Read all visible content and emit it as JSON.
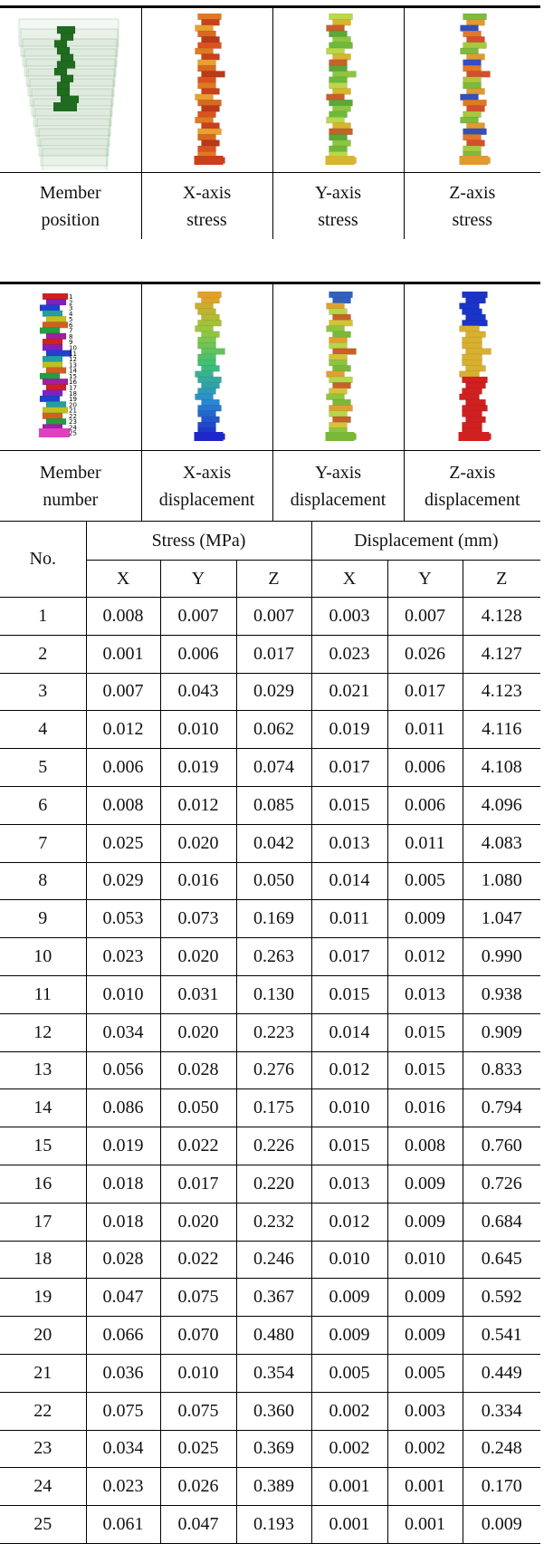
{
  "figure_rows": [
    {
      "labels": [
        [
          "Member",
          "position"
        ],
        [
          "X-axis",
          "stress"
        ],
        [
          "Y-axis",
          "stress"
        ],
        [
          "Z-axis",
          "stress"
        ]
      ]
    },
    {
      "labels": [
        [
          "Member",
          "number"
        ],
        [
          "X-axis",
          "displacement"
        ],
        [
          "Y-axis",
          "displacement"
        ],
        [
          "Z-axis",
          "displacement"
        ]
      ],
      "member_numbers": [
        1,
        2,
        3,
        4,
        5,
        6,
        7,
        8,
        9,
        10,
        11,
        12,
        13,
        14,
        15,
        16,
        17,
        18,
        19,
        20,
        21,
        22,
        23,
        24,
        25
      ]
    }
  ],
  "table": {
    "header": {
      "no": "No.",
      "stress": "Stress (MPa)",
      "displacement": "Displacement (mm)",
      "axes": [
        "X",
        "Y",
        "Z",
        "X",
        "Y",
        "Z"
      ]
    },
    "rows": [
      [
        1,
        "0.008",
        "0.007",
        "0.007",
        "0.003",
        "0.007",
        "4.128"
      ],
      [
        2,
        "0.001",
        "0.006",
        "0.017",
        "0.023",
        "0.026",
        "4.127"
      ],
      [
        3,
        "0.007",
        "0.043",
        "0.029",
        "0.021",
        "0.017",
        "4.123"
      ],
      [
        4,
        "0.012",
        "0.010",
        "0.062",
        "0.019",
        "0.011",
        "4.116"
      ],
      [
        5,
        "0.006",
        "0.019",
        "0.074",
        "0.017",
        "0.006",
        "4.108"
      ],
      [
        6,
        "0.008",
        "0.012",
        "0.085",
        "0.015",
        "0.006",
        "4.096"
      ],
      [
        7,
        "0.025",
        "0.020",
        "0.042",
        "0.013",
        "0.011",
        "4.083"
      ],
      [
        8,
        "0.029",
        "0.016",
        "0.050",
        "0.014",
        "0.005",
        "1.080"
      ],
      [
        9,
        "0.053",
        "0.073",
        "0.169",
        "0.011",
        "0.009",
        "1.047"
      ],
      [
        10,
        "0.023",
        "0.020",
        "0.263",
        "0.017",
        "0.012",
        "0.990"
      ],
      [
        11,
        "0.010",
        "0.031",
        "0.130",
        "0.015",
        "0.013",
        "0.938"
      ],
      [
        12,
        "0.034",
        "0.020",
        "0.223",
        "0.014",
        "0.015",
        "0.909"
      ],
      [
        13,
        "0.056",
        "0.028",
        "0.276",
        "0.012",
        "0.015",
        "0.833"
      ],
      [
        14,
        "0.086",
        "0.050",
        "0.175",
        "0.010",
        "0.016",
        "0.794"
      ],
      [
        15,
        "0.019",
        "0.022",
        "0.226",
        "0.015",
        "0.008",
        "0.760"
      ],
      [
        16,
        "0.018",
        "0.017",
        "0.220",
        "0.013",
        "0.009",
        "0.726"
      ],
      [
        17,
        "0.018",
        "0.020",
        "0.232",
        "0.012",
        "0.009",
        "0.684"
      ],
      [
        18,
        "0.028",
        "0.022",
        "0.246",
        "0.010",
        "0.010",
        "0.645"
      ],
      [
        19,
        "0.047",
        "0.075",
        "0.367",
        "0.009",
        "0.009",
        "0.592"
      ],
      [
        20,
        "0.066",
        "0.070",
        "0.480",
        "0.009",
        "0.009",
        "0.541"
      ],
      [
        21,
        "0.036",
        "0.010",
        "0.354",
        "0.005",
        "0.005",
        "0.449"
      ],
      [
        22,
        "0.075",
        "0.075",
        "0.360",
        "0.002",
        "0.003",
        "0.334"
      ],
      [
        23,
        "0.034",
        "0.025",
        "0.369",
        "0.002",
        "0.002",
        "0.248"
      ],
      [
        24,
        "0.023",
        "0.026",
        "0.389",
        "0.001",
        "0.001",
        "0.170"
      ],
      [
        25,
        "0.061",
        "0.047",
        "0.193",
        "0.001",
        "0.001",
        "0.009"
      ]
    ]
  }
}
